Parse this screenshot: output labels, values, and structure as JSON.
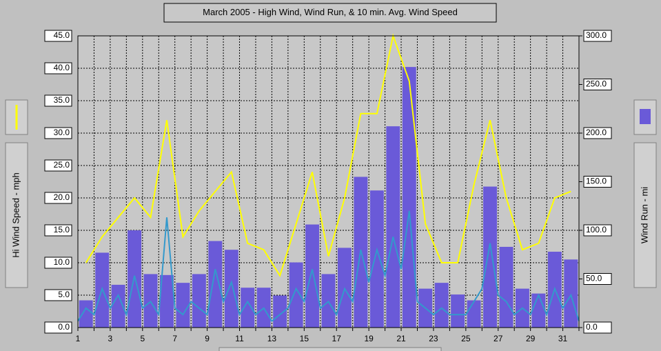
{
  "chart_data": {
    "type": "combo",
    "title": "March 2005 - High Wind, Wind Run, & 10 min. Avg. Wind Speed",
    "y_label": "Hi Wind Speed - mph",
    "y2_label": "Wind Run - mi",
    "xlim": [
      1,
      32
    ],
    "xticks": [
      1,
      {
        "value": 2,
        "label": null
      },
      3,
      {
        "value": 4,
        "label": null
      },
      5,
      {
        "value": 6,
        "label": null
      },
      7,
      {
        "value": 8,
        "label": null
      },
      9,
      {
        "value": 10,
        "label": null
      },
      11,
      {
        "value": 12,
        "label": null
      },
      13,
      {
        "value": 14,
        "label": null
      },
      15,
      {
        "value": 16,
        "label": null
      },
      17,
      {
        "value": 18,
        "label": null
      },
      19,
      {
        "value": 20,
        "label": null
      },
      21,
      {
        "value": 22,
        "label": null
      },
      23,
      {
        "value": 24,
        "label": null
      },
      25,
      {
        "value": 26,
        "label": null
      },
      27,
      {
        "value": 28,
        "label": null
      },
      29,
      {
        "value": 30,
        "label": null
      },
      31,
      {
        "value": 32,
        "label": null
      }
    ],
    "ylim": [
      0,
      45
    ],
    "yticks": [
      {
        "value": 0,
        "label": "0.0"
      },
      {
        "value": 5,
        "label": "5.0"
      },
      {
        "value": 10,
        "label": "10.0"
      },
      {
        "value": 15,
        "label": "15.0"
      },
      {
        "value": 20,
        "label": "20.0"
      },
      {
        "value": 25,
        "label": "25.0"
      },
      {
        "value": 30,
        "label": "30.0"
      },
      {
        "value": 35,
        "label": "35.0"
      },
      {
        "value": 40,
        "label": "40.0"
      },
      {
        "value": 45,
        "label": "45.0"
      }
    ],
    "y2lim": [
      0,
      300
    ],
    "y2ticks": [
      {
        "value": 0,
        "label": "0.0"
      },
      {
        "value": 50,
        "label": "50.0"
      },
      {
        "value": 100,
        "label": "100.0"
      },
      {
        "value": 150,
        "label": "150.0"
      },
      {
        "value": 200,
        "label": "200.0"
      },
      {
        "value": 250,
        "label": "250.0"
      },
      {
        "value": 300,
        "label": "300.0"
      }
    ],
    "grid": true,
    "series": [
      {
        "type": "bar",
        "axis": "y2",
        "color": "#6a5ad8",
        "x": [
          1.5,
          2.5,
          3.5,
          4.5,
          5.5,
          6.5,
          7.5,
          8.5,
          9.5,
          10.5,
          11.5,
          12.5,
          13.5,
          14.5,
          15.5,
          16.5,
          17.5,
          18.5,
          19.5,
          20.5,
          21.5,
          22.5,
          23.5,
          24.5,
          25.5,
          26.5,
          27.5,
          28.5,
          29.5,
          30.5,
          31.5
        ],
        "values": [
          28,
          77,
          44,
          100,
          55,
          54,
          46,
          55,
          89,
          80,
          41,
          41,
          33,
          67,
          106,
          55,
          82,
          155,
          141,
          207,
          268,
          40,
          46,
          34,
          28,
          145,
          83,
          40,
          35,
          78,
          70
        ]
      },
      {
        "type": "line",
        "axis": "y",
        "color": "#ffff00",
        "x": [
          1.5,
          2.5,
          3.5,
          4.5,
          5.5,
          6.5,
          7.5,
          8.5,
          9.5,
          10.5,
          11.5,
          12.5,
          13.5,
          14.5,
          15.5,
          16.5,
          17.5,
          18.5,
          19.5,
          20.5,
          21.5,
          22.5,
          23.5,
          24.5,
          25.5,
          26.5,
          27.5,
          28.5,
          29.5,
          30.5,
          31.5
        ],
        "values": [
          10,
          14,
          17,
          20,
          17,
          32,
          14,
          18,
          21,
          24,
          13,
          12,
          8,
          16,
          24,
          11,
          20,
          33,
          33,
          45,
          38,
          16,
          10,
          10,
          22,
          32,
          20,
          12,
          13,
          20,
          21
        ]
      },
      {
        "type": "line",
        "axis": "y",
        "color": "#3399cc",
        "x": [
          1,
          1.5,
          2,
          2.5,
          3,
          3.5,
          4,
          4.5,
          5,
          5.5,
          6,
          6.5,
          7,
          7.5,
          8,
          8.5,
          9,
          9.5,
          10,
          10.5,
          11,
          11.5,
          12,
          12.5,
          13,
          13.5,
          14,
          14.5,
          15,
          15.5,
          16,
          16.5,
          17,
          17.5,
          18,
          18.5,
          19,
          19.5,
          20,
          20.5,
          21,
          21.5,
          22,
          22.5,
          23,
          23.5,
          24,
          24.5,
          25,
          25.5,
          26,
          26.5,
          27,
          27.5,
          28,
          28.5,
          29,
          29.5,
          30,
          30.5,
          31,
          31.5,
          32
        ],
        "values": [
          1,
          3,
          2,
          6,
          3,
          5,
          2,
          8,
          3,
          4,
          2,
          17,
          3,
          2,
          4,
          3,
          2,
          9,
          4,
          7,
          2,
          4,
          2,
          3,
          1,
          2,
          3,
          6,
          4,
          9,
          3,
          4,
          2,
          6,
          4,
          12,
          7,
          12,
          8,
          14,
          9,
          18,
          4,
          3,
          2,
          3,
          2,
          2,
          2,
          4,
          6,
          13,
          5,
          4,
          2,
          3,
          2,
          5,
          2,
          6,
          3,
          5,
          1
        ]
      }
    ]
  }
}
